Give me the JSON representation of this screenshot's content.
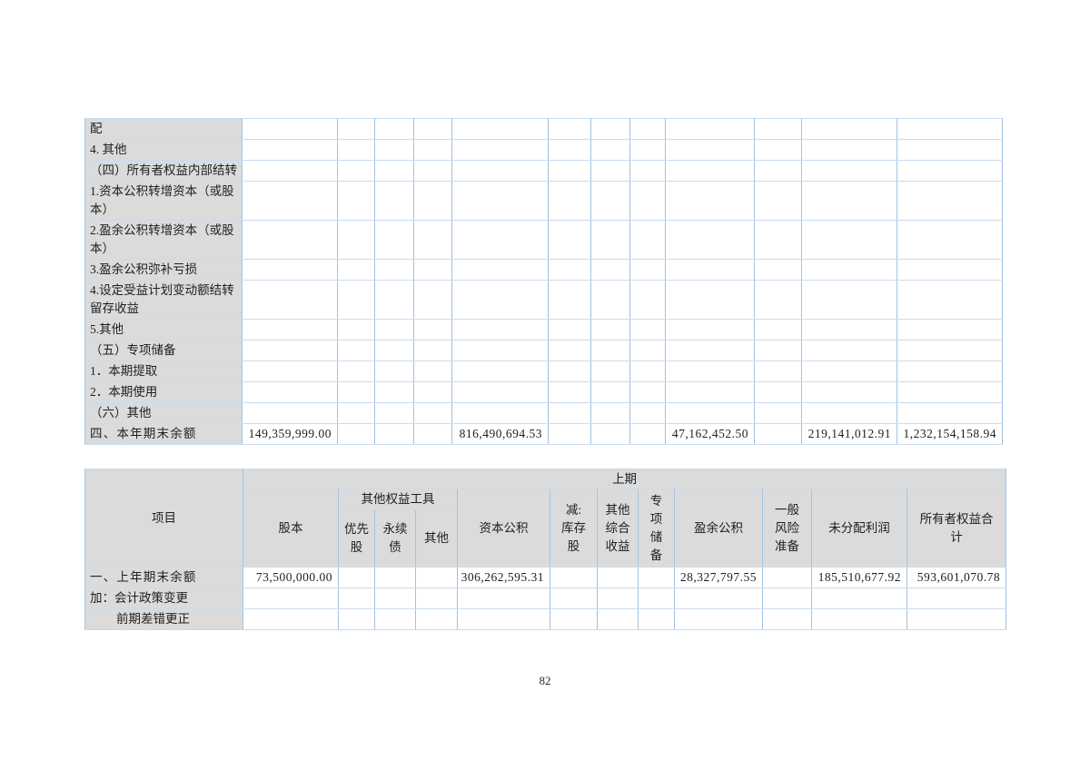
{
  "page": {
    "number": "82"
  },
  "colors": {
    "header_fill": "#dbdbdb",
    "grid_strong": "#9fc3e4",
    "grid_light": "#c9dcf0"
  },
  "top_table": {
    "rows": [
      {
        "label": "配"
      },
      {
        "label": "4. 其他"
      },
      {
        "label": "（四）所有者权益内部结转"
      },
      {
        "label": "1.资本公积转增资本（或股本）"
      },
      {
        "label": "2.盈余公积转增资本（或股本）"
      },
      {
        "label": "3.盈余公积弥补亏损"
      },
      {
        "label": "4.设定受益计划变动额结转留存收益"
      },
      {
        "label": "5.其他"
      },
      {
        "label": "（五）专项储备"
      },
      {
        "label": "1．本期提取"
      },
      {
        "label": "2．本期使用"
      },
      {
        "label": "（六）其他"
      },
      {
        "label": "四、本年期末余额",
        "bold": true,
        "cells": [
          "149,359,999.00",
          "",
          "",
          "",
          "816,490,694.53",
          "",
          "",
          "",
          "47,162,452.50",
          "",
          "219,141,012.91",
          "1,232,154,158.94"
        ]
      }
    ]
  },
  "bottom_table": {
    "header": {
      "period": "上期",
      "item": "项目",
      "share_capital": "股本",
      "other_equity": "其他权益工具",
      "preferred": "优先\n股",
      "perpetual": "永续\n债",
      "other": "其他",
      "capital_reserve": "资本公积",
      "less_treasury": "减:\n库存\n股",
      "oci": "其他\n综合\n收益",
      "special_reserve": "专\n项\n储\n备",
      "surplus_reserve": "盈余公积",
      "general_risk": "一般\n风险\n准备",
      "undistributed": "未分配利润",
      "total": "所有者权益合\n计"
    },
    "rows": [
      {
        "label": "一、上年期末余额",
        "bold": true,
        "cells": [
          "73,500,000.00",
          "",
          "",
          "",
          "306,262,595.31",
          "",
          "",
          "",
          "28,327,797.55",
          "",
          "185,510,677.92",
          "593,601,070.78"
        ]
      },
      {
        "label": "加：会计政策变更"
      },
      {
        "label": "前期差错更正",
        "indent": true
      }
    ]
  }
}
